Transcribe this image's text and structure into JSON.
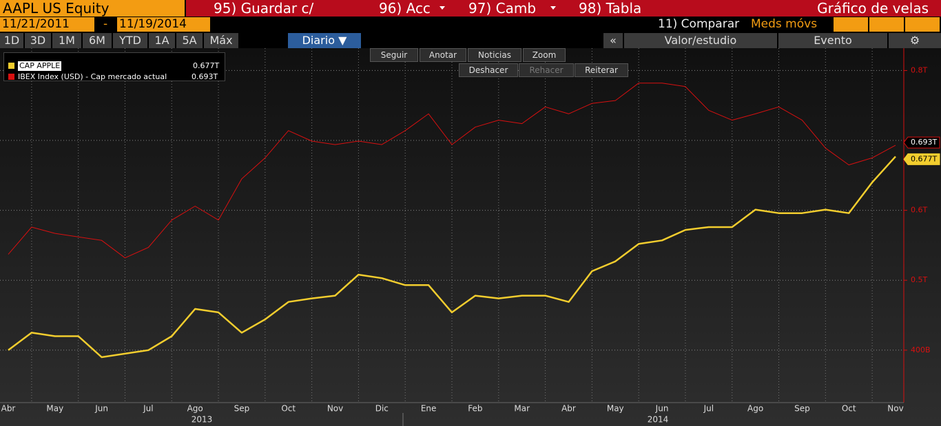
{
  "header": {
    "ticker": "AAPL US Equity",
    "menu": [
      "95) Guardar c/",
      "96) Acc",
      "97) Camb",
      "98) Tabla"
    ],
    "chart_kind": "Gráfico de velas"
  },
  "range": {
    "start": "11/21/2011",
    "separator": "-",
    "end": "11/19/2014",
    "compare": "11) Comparar",
    "moving_avg": "Meds móvs"
  },
  "periods": [
    "1D",
    "3D",
    "1M",
    "6M",
    "YTD",
    "1A",
    "5A",
    "Máx"
  ],
  "frequency": "Diario ▼",
  "right_tools": {
    "collapse": "«",
    "study": "Valor/estudio",
    "event": "Evento",
    "settings": "⚙"
  },
  "toolbar": {
    "row1": [
      "Seguir",
      "Anotar",
      "Noticias",
      "Zoom"
    ],
    "row2": [
      "Deshacer",
      "Rehacer",
      "Reiterar"
    ]
  },
  "chart_data": {
    "type": "line",
    "categories": [
      "Abr",
      null,
      "May",
      null,
      "Jun",
      null,
      "Jul",
      null,
      "Ago",
      null,
      "Sep",
      null,
      "Oct",
      null,
      "Nov",
      null,
      "Dic",
      null,
      "Ene",
      null,
      "Feb",
      null,
      "Mar",
      null,
      "Abr",
      null,
      "May",
      null,
      "Jun",
      null,
      "Jul",
      null,
      "Ago",
      null,
      "Sep",
      null,
      "Oct",
      null,
      "Nov"
    ],
    "year_labels": [
      "2013",
      "2014"
    ],
    "series": [
      {
        "name": "CAP APPLE",
        "color": "#f2cd2e",
        "last_label": "0.677T",
        "values": [
          0.4,
          0.425,
          0.42,
          0.42,
          0.39,
          0.395,
          0.4,
          0.42,
          0.459,
          0.454,
          0.425,
          0.444,
          0.469,
          0.474,
          0.478,
          0.508,
          0.503,
          0.493,
          0.493,
          0.454,
          0.478,
          0.474,
          0.478,
          0.478,
          0.469,
          0.513,
          0.527,
          0.552,
          0.557,
          0.572,
          0.576,
          0.576,
          0.601,
          0.596,
          0.596,
          0.601,
          0.596,
          0.64,
          0.677
        ]
      },
      {
        "name": "IBEX Index (USD) - Cap mercado actual",
        "color": "#d81010",
        "last_label": "0.693T",
        "values": [
          0.537,
          0.576,
          0.567,
          0.562,
          0.557,
          0.532,
          0.547,
          0.586,
          0.606,
          0.586,
          0.645,
          0.675,
          0.714,
          0.699,
          0.694,
          0.699,
          0.694,
          0.714,
          0.738,
          0.694,
          0.719,
          0.729,
          0.724,
          0.748,
          0.738,
          0.753,
          0.757,
          0.782,
          0.782,
          0.777,
          0.743,
          0.729,
          0.738,
          0.748,
          0.729,
          0.689,
          0.665,
          0.675,
          0.693
        ]
      }
    ],
    "ylim": [
      0.325,
      0.827
    ],
    "yticks": [
      {
        "value": 0.4,
        "label": "400B"
      },
      {
        "value": 0.5,
        "label": "0.5T"
      },
      {
        "value": 0.6,
        "label": "0.6T"
      },
      {
        "value": 0.7,
        "label": null
      },
      {
        "value": 0.8,
        "label": "0.8T"
      }
    ],
    "axis_color": "#d81010",
    "grid": true
  }
}
